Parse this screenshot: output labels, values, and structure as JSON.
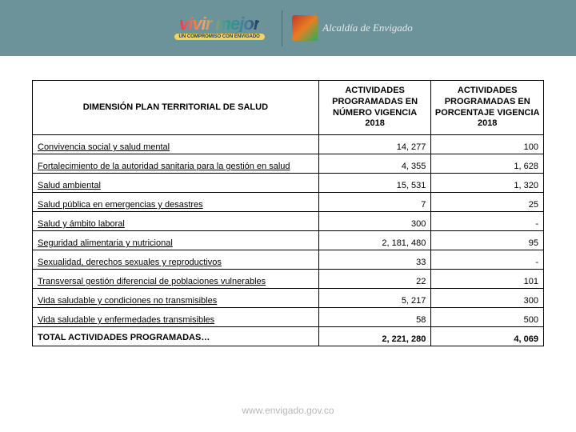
{
  "header": {
    "vivir_line1": "vivir",
    "vivir_line2": "mejor",
    "tagline": "UN COMPROMISO CON ENVIGADO",
    "alcaldia": "Alcaldía de Envigado"
  },
  "table": {
    "headers": {
      "dimension": "DIMENSIÓN PLAN TERRITORIAL DE SALUD",
      "col2": "ACTIVIDADES PROGRAMADAS EN NÚMERO VIGENCIA 2018",
      "col3": "ACTIVIDADES PROGRAMADAS EN PORCENTAJE VIGENCIA 2018"
    },
    "rows": [
      {
        "label": "Convivencia social y salud mental",
        "v1": "14, 277",
        "v2": "100"
      },
      {
        "label": "Fortalecimiento de la autoridad sanitaria para la gestión en salud",
        "v1": "4, 355",
        "v2": "1, 628"
      },
      {
        "label": "Salud ambiental",
        "v1": "15, 531",
        "v2": "1, 320"
      },
      {
        "label": "Salud pública en emergencias y desastres",
        "v1": "7",
        "v2": "25"
      },
      {
        "label": "Salud y ámbito laboral",
        "v1": "300",
        "v2": "-"
      },
      {
        "label": "Seguridad alimentaria y nutricional",
        "v1": "2, 181, 480",
        "v2": "95"
      },
      {
        "label": "Sexualidad, derechos sexuales y reproductivos",
        "v1": "33",
        "v2": "-"
      },
      {
        "label": "Transversal gestión diferencial de poblaciones vulnerables",
        "v1": "22",
        "v2": "101"
      },
      {
        "label": "Vida saludable y condiciones no transmisibles",
        "v1": "5, 217",
        "v2": "300"
      },
      {
        "label": "Vida saludable y enfermedades transmisibles",
        "v1": "58",
        "v2": "500"
      }
    ],
    "total": {
      "label": "TOTAL ACTIVIDADES PROGRAMADAS…",
      "v1": "2, 221, 280",
      "v2": "4, 069"
    }
  },
  "footer": {
    "url": "www.envigado.gov.co"
  }
}
